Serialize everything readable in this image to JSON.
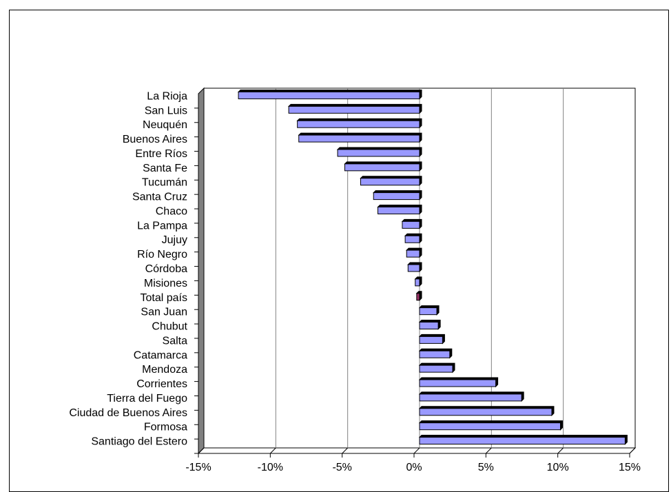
{
  "chart_data": {
    "type": "bar",
    "orientation": "horizontal",
    "categories": [
      "La Rioja",
      "San Luis",
      "Neuquén",
      "Buenos Aires",
      "Entre Ríos",
      "Santa Fe",
      "Tucumán",
      "Santa Cruz",
      "Chaco",
      "La Pampa",
      "Jujuy",
      "Río Negro",
      "Córdoba",
      "Misiones",
      "Total país",
      "San Juan",
      "Chubut",
      "Salta",
      "Catamarca",
      "Mendoza",
      "Corrientes",
      "Tierra del Fuego",
      "Ciudad de Buenos Aires",
      "Formosa",
      "Santiago del Estero"
    ],
    "values": [
      -12.6,
      -9.1,
      -8.5,
      -8.4,
      -5.7,
      -5.2,
      -4.1,
      -3.2,
      -2.9,
      -1.2,
      -1.0,
      -0.9,
      -0.8,
      -0.3,
      -0.2,
      1.2,
      1.3,
      1.6,
      2.1,
      2.3,
      5.3,
      7.1,
      9.2,
      9.8,
      14.3
    ],
    "highlight_category": "Total país",
    "xlim": [
      -15,
      15
    ],
    "ticks": [
      "-15%",
      "-10%",
      "-5%",
      "0%",
      "5%",
      "10%",
      "15%"
    ],
    "tick_values": [
      -15,
      -10,
      -5,
      0,
      5,
      10,
      15
    ],
    "grid": true,
    "title": "",
    "xlabel": "",
    "ylabel": "",
    "colors": {
      "bar": "#9999ff",
      "highlight": "#993366",
      "depth": "#000000",
      "wall": "#808080",
      "grid": "#808080"
    }
  }
}
